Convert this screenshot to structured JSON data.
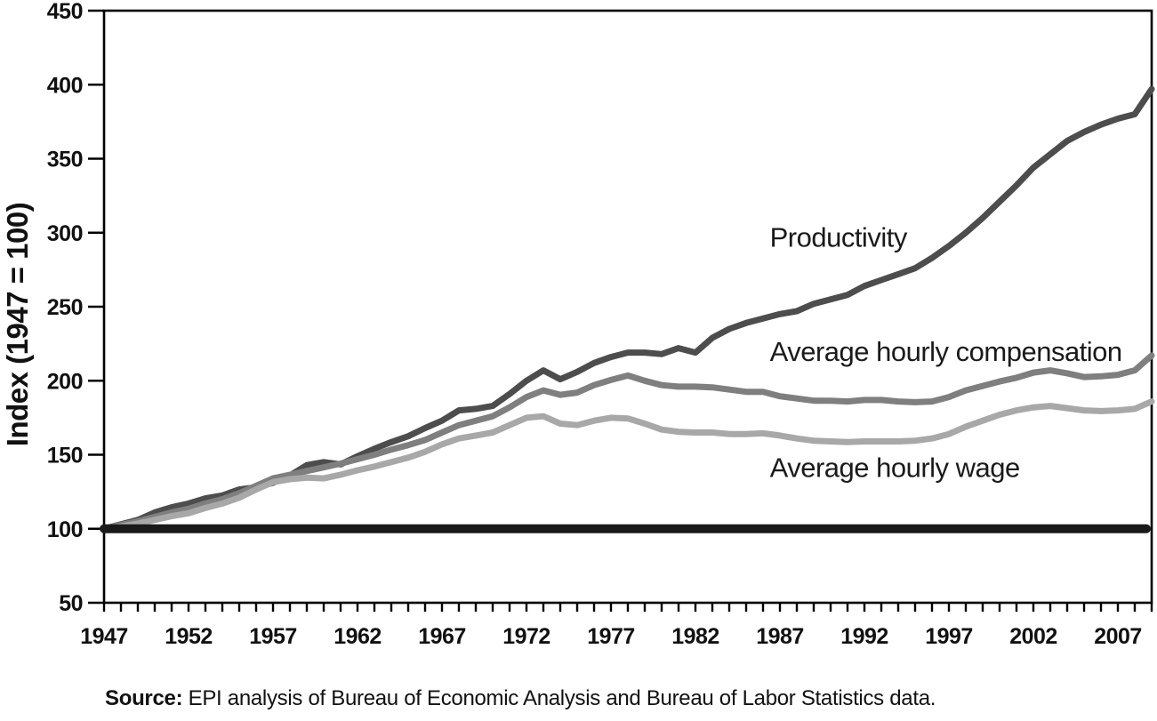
{
  "figure": {
    "source_prefix": "Source:",
    "source_text": " EPI analysis of Bureau of Economic Analysis and Bureau of Labor Statistics data."
  },
  "chart_data": {
    "type": "line",
    "title": "",
    "xlabel": "",
    "ylabel": "Index (1947 = 100)",
    "xlim": [
      1947,
      2009
    ],
    "ylim": [
      50,
      450
    ],
    "grid": false,
    "legend_position": "inline-labels",
    "y_ticks": [
      50,
      100,
      150,
      200,
      250,
      300,
      350,
      400,
      450
    ],
    "x_ticks": [
      1947,
      1952,
      1957,
      1962,
      1967,
      1972,
      1977,
      1982,
      1987,
      1992,
      1997,
      2002,
      2007
    ],
    "x_minor_tick_interval": 1,
    "axis_color": "#000000",
    "baseline": {
      "value": 100,
      "color": "#1a1a1a"
    },
    "x": [
      1947,
      1948,
      1949,
      1950,
      1951,
      1952,
      1953,
      1954,
      1955,
      1956,
      1957,
      1958,
      1959,
      1960,
      1961,
      1962,
      1963,
      1964,
      1965,
      1966,
      1967,
      1968,
      1969,
      1970,
      1971,
      1972,
      1973,
      1974,
      1975,
      1976,
      1977,
      1978,
      1979,
      1980,
      1981,
      1982,
      1983,
      1984,
      1985,
      1986,
      1987,
      1988,
      1989,
      1990,
      1991,
      1992,
      1993,
      1994,
      1995,
      1996,
      1997,
      1998,
      1999,
      2000,
      2001,
      2002,
      2003,
      2004,
      2005,
      2006,
      2007,
      2008,
      2009
    ],
    "series": [
      {
        "name": "Productivity",
        "color": "#4d4d4d",
        "label": {
          "year": 1986.4,
          "value": 297
        },
        "values": [
          100,
          103,
          106,
          111,
          114.5,
          117,
          120.5,
          122.5,
          126.5,
          128,
          131,
          136,
          143,
          145,
          143.5,
          149,
          154,
          158.5,
          162.5,
          168,
          173,
          180,
          181,
          183,
          191,
          200,
          207,
          201,
          206,
          212,
          216,
          219,
          219,
          218,
          222,
          219,
          229,
          235,
          239,
          242,
          245,
          247,
          252,
          255,
          258,
          264,
          268,
          272,
          276,
          283,
          291,
          300,
          310,
          321,
          332,
          344,
          353,
          362,
          368,
          373,
          377,
          380,
          397
        ]
      },
      {
        "name": "Average hourly compensation",
        "color": "#7f7f7f",
        "label": {
          "year": 1986.4,
          "value": 220
        },
        "values": [
          100,
          102.5,
          105,
          108,
          111,
          113.5,
          117,
          120,
          124,
          129,
          134,
          136.5,
          139,
          141.5,
          144,
          147,
          150,
          153.5,
          156.5,
          160,
          165,
          170,
          173,
          176,
          182,
          189,
          193.5,
          190.5,
          192,
          197,
          200.5,
          203.5,
          200,
          197,
          196,
          196,
          195.5,
          194,
          192.5,
          192.5,
          189.5,
          188,
          186.5,
          186.5,
          186,
          187,
          187,
          186,
          185.5,
          186,
          189,
          193.5,
          196.5,
          199.5,
          202,
          205.5,
          207,
          205,
          202.5,
          203,
          204,
          207,
          217
        ]
      },
      {
        "name": "Average hourly wage",
        "color": "#a8a8a8",
        "label": {
          "year": 1986.4,
          "value": 141.5
        },
        "values": [
          100,
          101.5,
          103.5,
          106,
          108.5,
          110.5,
          114,
          117,
          121,
          126.5,
          131.5,
          133.5,
          134.5,
          134,
          136.5,
          139.5,
          142,
          145,
          148,
          152,
          157,
          161,
          163,
          165,
          170,
          175,
          176,
          171,
          170,
          173,
          175,
          174.5,
          171,
          167,
          165.5,
          165,
          165,
          164,
          164,
          164.5,
          163,
          161,
          159.5,
          159,
          158.5,
          159,
          159,
          159,
          159.5,
          161,
          164,
          169,
          173,
          177,
          180,
          182,
          183,
          181.5,
          180,
          179.5,
          180,
          181,
          186
        ]
      }
    ]
  }
}
